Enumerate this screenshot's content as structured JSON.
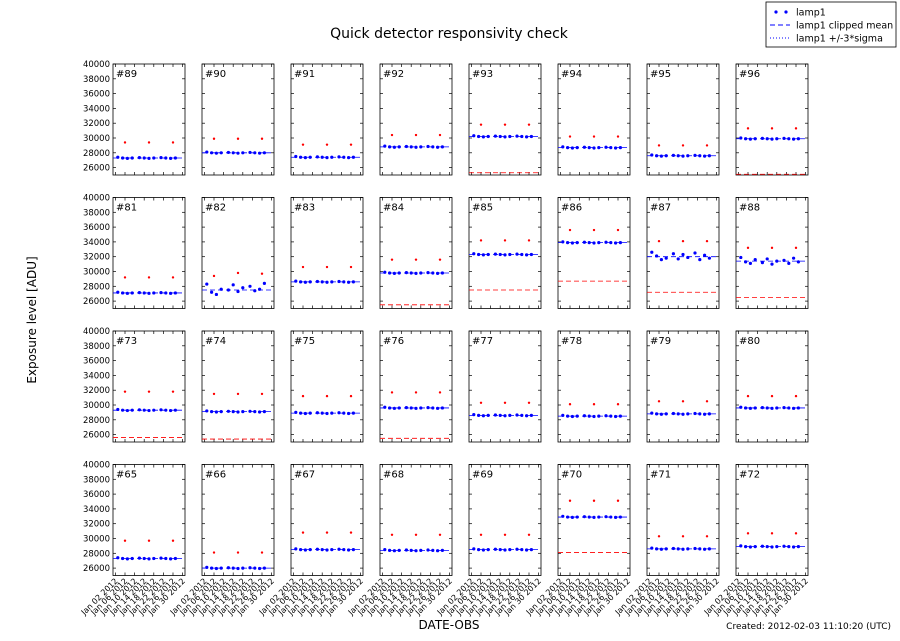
{
  "figure": {
    "title": "Quick detector responsivity check",
    "xlabel": "DATE-OBS",
    "ylabel": "Exposure level [ADU]",
    "created": "Created: 2012-02-03 11:10:20 (UTC)",
    "legend": [
      {
        "name": "lamp1",
        "color": "#0000ff"
      },
      {
        "name": "lamp1 clipped mean",
        "color": "#0000ff"
      },
      {
        "name": "lamp1 +/-3*sigma",
        "color": "#0000ff"
      }
    ],
    "outlier_color": "#ff0000",
    "sigma_color": "#ff0000",
    "xlim": [
      "2012-01-01",
      "2012-01-31"
    ],
    "xticks": [
      {
        "value": "2012-01-02",
        "label": "Jan 02 2012"
      },
      {
        "value": "2012-01-06",
        "label": "Jan 06 2012"
      },
      {
        "value": "2012-01-10",
        "label": "Jan 10 2012"
      },
      {
        "value": "2012-01-14",
        "label": "Jan 14 2012"
      },
      {
        "value": "2012-01-18",
        "label": "Jan 18 2012"
      },
      {
        "value": "2012-01-22",
        "label": "Jan 22 2012"
      },
      {
        "value": "2012-01-26",
        "label": "Jan 26 2012"
      },
      {
        "value": "2012-01-30",
        "label": "Jan 30 2012"
      }
    ],
    "ylim": [
      25000,
      40000
    ],
    "yticks": [
      26000,
      28000,
      30000,
      32000,
      34000,
      36000,
      38000,
      40000
    ],
    "x": [
      "2012-01-03",
      "2012-01-05",
      "2012-01-07",
      "2012-01-09",
      "2012-01-12",
      "2012-01-14",
      "2012-01-16",
      "2012-01-18",
      "2012-01-21",
      "2012-01-23",
      "2012-01-25",
      "2012-01-27"
    ],
    "x_outliers": [
      "2012-01-06",
      "2012-01-16",
      "2012-01-26"
    ]
  },
  "chart_data": [
    {
      "type": "scatter",
      "label": "#89",
      "values": [
        27400,
        27300,
        27250,
        27300,
        27350,
        27300,
        27250,
        27300,
        27350,
        27300,
        27250,
        27300
      ],
      "outliers": [
        29400,
        29400,
        29400
      ],
      "mean": 27300
    },
    {
      "type": "scatter",
      "label": "#90",
      "values": [
        28100,
        28000,
        27950,
        28000,
        28050,
        28000,
        27950,
        28000,
        28050,
        28000,
        27950,
        28000
      ],
      "outliers": [
        29900,
        29900,
        29900
      ],
      "mean": 28000
    },
    {
      "type": "scatter",
      "label": "#91",
      "values": [
        27500,
        27400,
        27350,
        27400,
        27450,
        27400,
        27350,
        27400,
        27450,
        27400,
        27350,
        27400
      ],
      "outliers": [
        29100,
        29100,
        29100
      ],
      "mean": 27400
    },
    {
      "type": "scatter",
      "label": "#92",
      "values": [
        28900,
        28800,
        28750,
        28800,
        28850,
        28800,
        28750,
        28800,
        28850,
        28800,
        28750,
        28800
      ],
      "outliers": [
        30400,
        30400,
        30400
      ],
      "mean": 28800
    },
    {
      "type": "scatter",
      "label": "#93",
      "values": [
        30300,
        30200,
        30150,
        30200,
        30250,
        30200,
        30150,
        30200,
        30250,
        30200,
        30150,
        30200
      ],
      "outliers": [
        31800,
        31800,
        31800
      ],
      "mean": 30200,
      "sigma_low": 25300
    },
    {
      "type": "scatter",
      "label": "#94",
      "values": [
        28800,
        28700,
        28650,
        28700,
        28750,
        28700,
        28650,
        28700,
        28750,
        28700,
        28650,
        28700
      ],
      "outliers": [
        30200,
        30200,
        30200
      ],
      "mean": 28700
    },
    {
      "type": "scatter",
      "label": "#95",
      "values": [
        27700,
        27600,
        27550,
        27600,
        27650,
        27600,
        27550,
        27600,
        27650,
        27600,
        27550,
        27600
      ],
      "outliers": [
        29000,
        29000,
        29000
      ],
      "mean": 27600
    },
    {
      "type": "scatter",
      "label": "#96",
      "values": [
        30000,
        29900,
        29850,
        29900,
        29950,
        29900,
        29850,
        29900,
        29950,
        29900,
        29850,
        29900
      ],
      "outliers": [
        31300,
        31300,
        31300
      ],
      "mean": 29900,
      "sigma_low": 25100
    },
    {
      "type": "scatter",
      "label": "#81",
      "values": [
        27200,
        27100,
        27050,
        27100,
        27150,
        27100,
        27050,
        27100,
        27150,
        27100,
        27050,
        27100
      ],
      "outliers": [
        29200,
        29200,
        29200
      ],
      "mean": 27100
    },
    {
      "type": "scatter",
      "label": "#82",
      "values": [
        28300,
        27200,
        26900,
        27600,
        27500,
        28200,
        27300,
        27800,
        28000,
        27400,
        27600,
        28400
      ],
      "outliers": [
        29400,
        29800,
        29700
      ],
      "mean": 27500
    },
    {
      "type": "scatter",
      "label": "#83",
      "values": [
        28700,
        28600,
        28550,
        28600,
        28650,
        28600,
        28550,
        28600,
        28650,
        28600,
        28550,
        28600
      ],
      "outliers": [
        30600,
        30600,
        30600
      ],
      "mean": 28600
    },
    {
      "type": "scatter",
      "label": "#84",
      "values": [
        29900,
        29800,
        29750,
        29800,
        29850,
        29800,
        29750,
        29800,
        29850,
        29800,
        29750,
        29800
      ],
      "outliers": [
        31600,
        31600,
        31600
      ],
      "mean": 29800,
      "sigma_low": 25500
    },
    {
      "type": "scatter",
      "label": "#85",
      "values": [
        32400,
        32300,
        32250,
        32300,
        32350,
        32300,
        32250,
        32300,
        32350,
        32300,
        32250,
        32300
      ],
      "outliers": [
        34200,
        34200,
        34200
      ],
      "mean": 32300,
      "sigma_low": 27500
    },
    {
      "type": "scatter",
      "label": "#86",
      "values": [
        34000,
        33900,
        33850,
        33900,
        33950,
        33900,
        33850,
        33900,
        33950,
        33900,
        33850,
        33900
      ],
      "outliers": [
        35600,
        35600,
        35600
      ],
      "mean": 33900,
      "sigma_low": 28700
    },
    {
      "type": "scatter",
      "label": "#87",
      "values": [
        32600,
        32100,
        31600,
        31800,
        32400,
        31700,
        32300,
        31900,
        32500,
        31600,
        32200,
        31800
      ],
      "outliers": [
        34100,
        34100,
        34100
      ],
      "mean": 32000,
      "sigma_low": 27200
    },
    {
      "type": "scatter",
      "label": "#88",
      "values": [
        31900,
        31300,
        31100,
        31600,
        31200,
        31700,
        31000,
        31400,
        31500,
        31100,
        31800,
        31300
      ],
      "outliers": [
        33200,
        33200,
        33200
      ],
      "mean": 31400,
      "sigma_low": 26500
    },
    {
      "type": "scatter",
      "label": "#73",
      "values": [
        29400,
        29300,
        29250,
        29300,
        29350,
        29300,
        29250,
        29300,
        29350,
        29300,
        29250,
        29300
      ],
      "outliers": [
        31800,
        31800,
        31800
      ],
      "mean": 29300,
      "sigma_low": 25600
    },
    {
      "type": "scatter",
      "label": "#74",
      "values": [
        29200,
        29100,
        29050,
        29100,
        29150,
        29100,
        29050,
        29100,
        29150,
        29100,
        29050,
        29100
      ],
      "outliers": [
        31500,
        31500,
        31500
      ],
      "mean": 29100,
      "sigma_low": 25400
    },
    {
      "type": "scatter",
      "label": "#75",
      "values": [
        29000,
        28900,
        28850,
        28900,
        28950,
        28900,
        28850,
        28900,
        28950,
        28900,
        28850,
        28900
      ],
      "outliers": [
        31200,
        31200,
        31200
      ],
      "mean": 28900
    },
    {
      "type": "scatter",
      "label": "#76",
      "values": [
        29700,
        29600,
        29550,
        29600,
        29650,
        29600,
        29550,
        29600,
        29650,
        29600,
        29550,
        29600
      ],
      "outliers": [
        31700,
        31700,
        31700
      ],
      "mean": 29600,
      "sigma_low": 25500
    },
    {
      "type": "scatter",
      "label": "#77",
      "values": [
        28700,
        28600,
        28550,
        28600,
        28650,
        28600,
        28550,
        28600,
        28650,
        28600,
        28550,
        28600
      ],
      "outliers": [
        30300,
        30300,
        30300
      ],
      "mean": 28600
    },
    {
      "type": "scatter",
      "label": "#78",
      "values": [
        28600,
        28500,
        28450,
        28500,
        28550,
        28500,
        28450,
        28500,
        28550,
        28500,
        28450,
        28500
      ],
      "outliers": [
        30100,
        30100,
        30100
      ],
      "mean": 28500
    },
    {
      "type": "scatter",
      "label": "#79",
      "values": [
        28900,
        28800,
        28750,
        28800,
        28850,
        28800,
        28750,
        28800,
        28850,
        28800,
        28750,
        28800
      ],
      "outliers": [
        30500,
        30500,
        30500
      ],
      "mean": 28800
    },
    {
      "type": "scatter",
      "label": "#80",
      "values": [
        29700,
        29600,
        29550,
        29600,
        29650,
        29600,
        29550,
        29600,
        29650,
        29600,
        29550,
        29600
      ],
      "outliers": [
        31200,
        31200,
        31200
      ],
      "mean": 29600
    },
    {
      "type": "scatter",
      "label": "#65",
      "values": [
        27400,
        27300,
        27250,
        27300,
        27350,
        27300,
        27250,
        27300,
        27350,
        27300,
        27250,
        27300
      ],
      "outliers": [
        29700,
        29700,
        29700
      ],
      "mean": 27300
    },
    {
      "type": "scatter",
      "label": "#66",
      "values": [
        26100,
        26000,
        25950,
        26000,
        26050,
        26000,
        25950,
        26000,
        26050,
        26000,
        25950,
        26000
      ],
      "outliers": [
        28100,
        28100,
        28100
      ],
      "mean": 26000
    },
    {
      "type": "scatter",
      "label": "#67",
      "values": [
        28600,
        28500,
        28450,
        28500,
        28550,
        28500,
        28450,
        28500,
        28550,
        28500,
        28450,
        28500
      ],
      "outliers": [
        30800,
        30800,
        30800
      ],
      "mean": 28500
    },
    {
      "type": "scatter",
      "label": "#68",
      "values": [
        28500,
        28400,
        28350,
        28400,
        28450,
        28400,
        28350,
        28400,
        28450,
        28400,
        28350,
        28400
      ],
      "outliers": [
        30500,
        30500,
        30500
      ],
      "mean": 28400
    },
    {
      "type": "scatter",
      "label": "#69",
      "values": [
        28600,
        28500,
        28450,
        28500,
        28550,
        28500,
        28450,
        28500,
        28550,
        28500,
        28450,
        28500
      ],
      "outliers": [
        30500,
        30500,
        30500
      ],
      "mean": 28500
    },
    {
      "type": "scatter",
      "label": "#70",
      "values": [
        33000,
        32900,
        32850,
        32900,
        32950,
        32900,
        32850,
        32900,
        32950,
        32900,
        32850,
        32900
      ],
      "outliers": [
        35100,
        35100,
        35100
      ],
      "mean": 32900,
      "sigma_low": 28100
    },
    {
      "type": "scatter",
      "label": "#71",
      "values": [
        28700,
        28600,
        28550,
        28600,
        28650,
        28600,
        28550,
        28600,
        28650,
        28600,
        28550,
        28600
      ],
      "outliers": [
        30300,
        30300,
        30300
      ],
      "mean": 28600
    },
    {
      "type": "scatter",
      "label": "#72",
      "values": [
        29000,
        28900,
        28850,
        28900,
        28950,
        28900,
        28850,
        28900,
        28950,
        28900,
        28850,
        28900
      ],
      "outliers": [
        30700,
        30700,
        30700
      ],
      "mean": 28900
    }
  ]
}
